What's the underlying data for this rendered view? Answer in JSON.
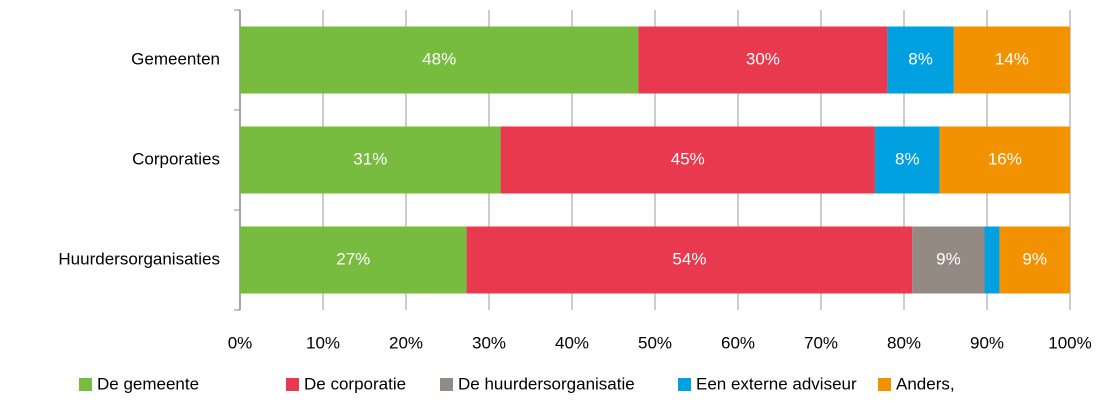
{
  "chart_data": {
    "type": "stacked-bar-horizontal",
    "categories": [
      "Gemeenten",
      "Corporaties",
      "Huurdersorganisaties"
    ],
    "series": [
      {
        "name": "De gemeente",
        "color": "#77bc3f",
        "values": [
          48,
          31.4,
          27.3
        ],
        "value_labels": [
          "48%",
          "31%",
          "27%"
        ]
      },
      {
        "name": "De corporatie",
        "color": "#e8394f",
        "values": [
          30,
          45.1,
          53.7
        ],
        "value_labels": [
          "30%",
          "45%",
          "54%"
        ]
      },
      {
        "name": "De huurdersorganisatie",
        "color": "#948a84",
        "values": [
          0,
          0,
          8.7
        ],
        "value_labels": [
          null,
          null,
          "9%"
        ]
      },
      {
        "name": "Een externe adviseur",
        "color": "#00a0e1",
        "values": [
          8,
          7.8,
          1.8
        ],
        "value_labels": [
          "8%",
          "8%",
          null
        ]
      },
      {
        "name": "Anders,",
        "color": "#f39200",
        "values": [
          14,
          15.7,
          8.5
        ],
        "value_labels": [
          "14%",
          "16%",
          "9%"
        ]
      }
    ],
    "xlim": [
      0,
      100
    ],
    "xticks": [
      {
        "value": 0,
        "label": "0%"
      },
      {
        "value": 10,
        "label": "10%"
      },
      {
        "value": 20,
        "label": "20%"
      },
      {
        "value": 30,
        "label": "30%"
      },
      {
        "value": 40,
        "label": "40%"
      },
      {
        "value": 50,
        "label": "50%"
      },
      {
        "value": 60,
        "label": "60%"
      },
      {
        "value": 70,
        "label": "70%"
      },
      {
        "value": 80,
        "label": "80%"
      },
      {
        "value": 90,
        "label": "90%"
      },
      {
        "value": 100,
        "label": "100%"
      }
    ],
    "grid": true,
    "legend": "bottom"
  }
}
